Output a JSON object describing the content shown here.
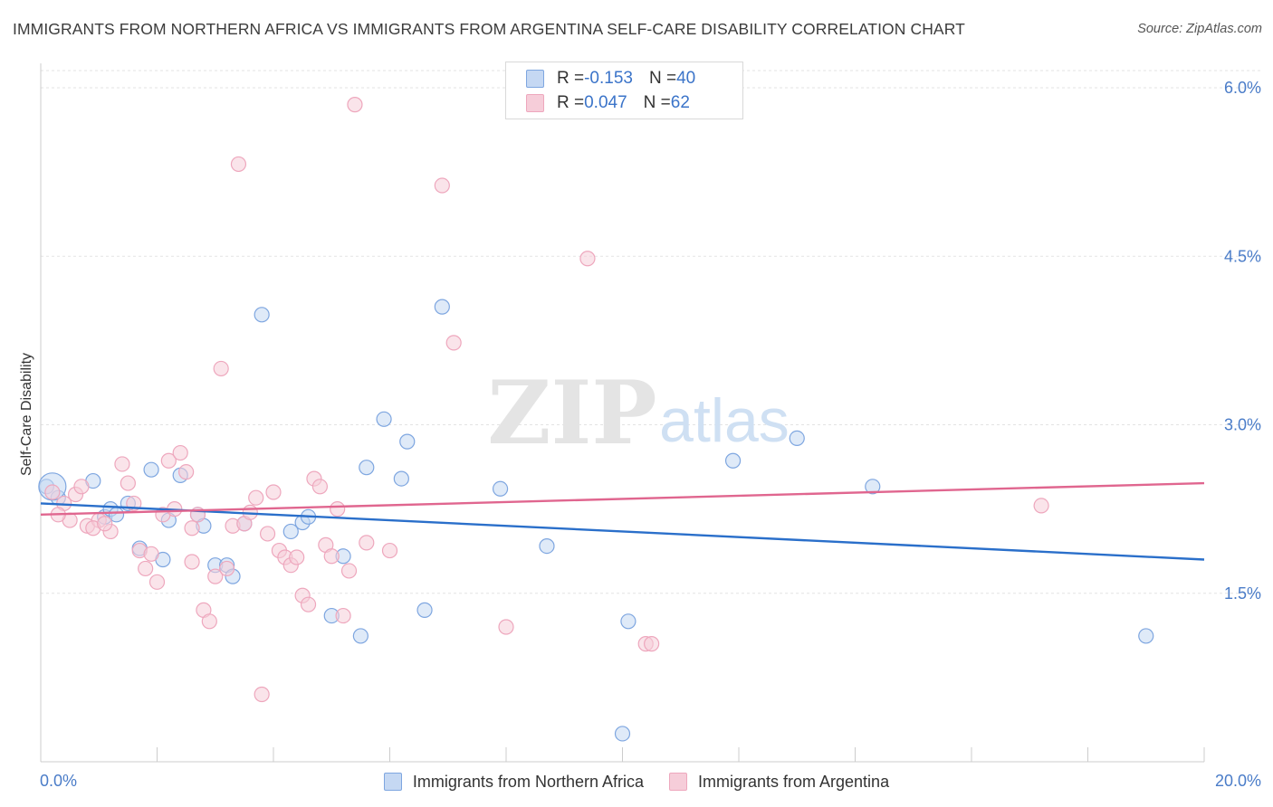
{
  "title": "IMMIGRANTS FROM NORTHERN AFRICA VS IMMIGRANTS FROM ARGENTINA SELF-CARE DISABILITY CORRELATION CHART",
  "source": "Source: ZipAtlas.com",
  "watermark": {
    "zip": "ZIP",
    "atlas": "atlas"
  },
  "legend_top": {
    "rows": [
      {
        "r_label": "R = ",
        "r_value": "-0.153",
        "n_label": "N = ",
        "n_value": "40"
      },
      {
        "r_label": "R = ",
        "r_value": "0.047",
        "n_label": "N = ",
        "n_value": "62"
      }
    ]
  },
  "chart_data": {
    "type": "scatter",
    "title": "IMMIGRANTS FROM NORTHERN AFRICA VS IMMIGRANTS FROM ARGENTINA SELF-CARE DISABILITY CORRELATION CHART",
    "xlabel": "",
    "ylabel": "Self-Care Disability",
    "xlim": [
      0,
      20
    ],
    "ylim": [
      0,
      6.2
    ],
    "x_tick_labels": [
      "0.0%",
      "20.0%"
    ],
    "y_ticks": [
      1.5,
      3.0,
      4.5,
      6.0
    ],
    "y_tick_labels": [
      "1.5%",
      "3.0%",
      "4.5%",
      "6.0%"
    ],
    "grid": "horizontal dashed",
    "legend_position": "bottom",
    "series": [
      {
        "name": "Immigrants from Northern Africa",
        "color": "#7ea6e0",
        "fill": "#c5d8f3",
        "line_color": "#2a6fca",
        "trend": {
          "x": [
            0,
            20
          ],
          "y": [
            2.3,
            1.8
          ]
        },
        "points": [
          [
            0.1,
            2.45
          ],
          [
            0.3,
            2.35
          ],
          [
            0.9,
            2.5
          ],
          [
            1.1,
            2.18
          ],
          [
            1.2,
            2.25
          ],
          [
            1.3,
            2.2
          ],
          [
            1.5,
            2.3
          ],
          [
            1.7,
            1.9
          ],
          [
            1.9,
            2.6
          ],
          [
            2.1,
            1.8
          ],
          [
            2.2,
            2.15
          ],
          [
            2.4,
            2.55
          ],
          [
            2.7,
            2.2
          ],
          [
            2.8,
            2.1
          ],
          [
            3.0,
            1.75
          ],
          [
            3.2,
            1.75
          ],
          [
            3.3,
            1.65
          ],
          [
            3.5,
            2.12
          ],
          [
            3.8,
            3.98
          ],
          [
            4.3,
            2.05
          ],
          [
            4.5,
            2.13
          ],
          [
            4.6,
            2.18
          ],
          [
            5.0,
            1.3
          ],
          [
            5.2,
            1.83
          ],
          [
            5.5,
            1.12
          ],
          [
            5.6,
            2.62
          ],
          [
            5.9,
            3.05
          ],
          [
            6.2,
            2.52
          ],
          [
            6.3,
            2.85
          ],
          [
            6.6,
            1.35
          ],
          [
            6.9,
            4.05
          ],
          [
            7.9,
            2.43
          ],
          [
            8.7,
            1.92
          ],
          [
            10.0,
            0.25
          ],
          [
            10.1,
            1.25
          ],
          [
            11.9,
            2.68
          ],
          [
            13.0,
            2.88
          ],
          [
            14.3,
            2.45
          ],
          [
            19.0,
            1.12
          ],
          [
            0.2,
            2.45
          ]
        ]
      },
      {
        "name": "Immigrants from Argentina",
        "color": "#eea7bd",
        "fill": "#f6cdd9",
        "line_color": "#e0668f",
        "trend": {
          "x": [
            0,
            20
          ],
          "y": [
            2.2,
            2.48
          ]
        },
        "points": [
          [
            0.2,
            2.4
          ],
          [
            0.4,
            2.3
          ],
          [
            0.5,
            2.15
          ],
          [
            0.6,
            2.38
          ],
          [
            0.7,
            2.45
          ],
          [
            0.8,
            2.1
          ],
          [
            1.0,
            2.15
          ],
          [
            1.2,
            2.05
          ],
          [
            1.4,
            2.65
          ],
          [
            1.5,
            2.48
          ],
          [
            1.6,
            2.3
          ],
          [
            1.7,
            1.88
          ],
          [
            1.8,
            1.72
          ],
          [
            1.9,
            1.85
          ],
          [
            2.0,
            1.6
          ],
          [
            2.1,
            2.2
          ],
          [
            2.2,
            2.68
          ],
          [
            2.3,
            2.25
          ],
          [
            2.4,
            2.75
          ],
          [
            2.5,
            2.58
          ],
          [
            2.6,
            1.78
          ],
          [
            2.7,
            2.2
          ],
          [
            2.8,
            1.35
          ],
          [
            2.9,
            1.25
          ],
          [
            3.0,
            1.65
          ],
          [
            3.1,
            3.5
          ],
          [
            3.2,
            1.72
          ],
          [
            3.3,
            2.1
          ],
          [
            3.4,
            5.32
          ],
          [
            3.5,
            2.12
          ],
          [
            3.6,
            2.22
          ],
          [
            3.7,
            2.35
          ],
          [
            3.8,
            0.6
          ],
          [
            3.9,
            2.03
          ],
          [
            4.0,
            2.4
          ],
          [
            4.1,
            1.88
          ],
          [
            4.2,
            1.82
          ],
          [
            4.3,
            1.75
          ],
          [
            4.4,
            1.82
          ],
          [
            4.5,
            1.48
          ],
          [
            4.6,
            1.4
          ],
          [
            4.7,
            2.52
          ],
          [
            4.8,
            2.45
          ],
          [
            4.9,
            1.93
          ],
          [
            5.0,
            1.83
          ],
          [
            5.1,
            2.25
          ],
          [
            5.2,
            1.3
          ],
          [
            5.3,
            1.7
          ],
          [
            5.4,
            5.85
          ],
          [
            5.6,
            1.95
          ],
          [
            6.0,
            1.88
          ],
          [
            6.9,
            5.13
          ],
          [
            7.1,
            3.73
          ],
          [
            8.0,
            1.2
          ],
          [
            9.4,
            4.48
          ],
          [
            10.4,
            1.05
          ],
          [
            10.5,
            1.05
          ],
          [
            17.2,
            2.28
          ],
          [
            0.3,
            2.2
          ],
          [
            0.9,
            2.08
          ],
          [
            1.1,
            2.12
          ],
          [
            2.6,
            2.08
          ]
        ]
      }
    ]
  },
  "legend_bottom": [
    {
      "label": "Immigrants from Northern Africa"
    },
    {
      "label": "Immigrants from Argentina"
    }
  ]
}
